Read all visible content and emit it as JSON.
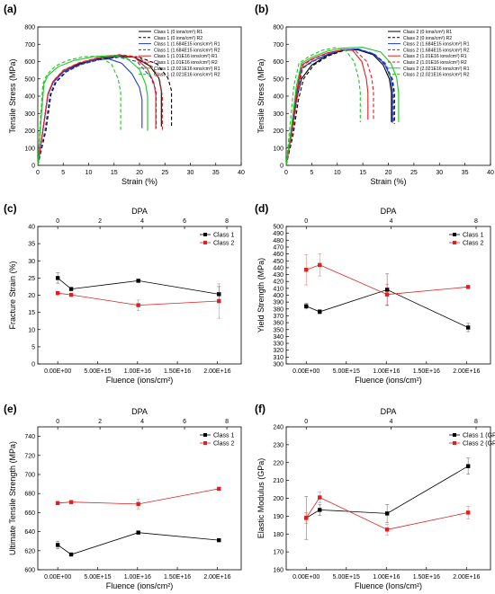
{
  "chart_data": [
    {
      "panel": "(a)",
      "type": "line",
      "xlabel": "Strain (%)",
      "ylabel": "Tensile Stress (MPa)",
      "xlim": [
        0,
        40
      ],
      "ylim": [
        0,
        800
      ],
      "xticks": [
        0,
        5,
        10,
        15,
        20,
        25,
        30,
        35,
        40
      ],
      "yticks": [
        0,
        100,
        200,
        300,
        400,
        500,
        600,
        700,
        800
      ],
      "legend": "top-right",
      "series": [
        {
          "name": "Class 1 (0 ions/cm²) R1",
          "color": "#000000",
          "dash": "solid",
          "x": [
            0,
            1,
            2,
            3,
            5,
            8,
            12,
            16,
            19,
            22,
            23.8,
            24.3,
            24.3
          ],
          "y": [
            0,
            200,
            410,
            480,
            540,
            585,
            615,
            630,
            625,
            575,
            505,
            430,
            225
          ]
        },
        {
          "name": "Class 1 (0 ions/cm²) R2",
          "color": "#000000",
          "dash": "dash",
          "x": [
            0,
            1.6,
            2.6,
            3.6,
            5.6,
            8.6,
            12.6,
            16.6,
            20,
            23.5,
            25.6,
            26.3,
            26.3
          ],
          "y": [
            0,
            200,
            410,
            480,
            540,
            585,
            615,
            630,
            625,
            585,
            505,
            430,
            225
          ]
        },
        {
          "name": "Class 1 (1.684E15 ions/cm²) R1",
          "color": "#1f3bd6",
          "dash": "solid",
          "x": [
            0,
            1,
            2,
            3,
            5,
            8,
            11,
            14,
            16.5,
            18.5,
            20,
            20.5,
            20.5
          ],
          "y": [
            0,
            200,
            410,
            480,
            540,
            580,
            608,
            615,
            590,
            530,
            450,
            380,
            215
          ]
        },
        {
          "name": "Class 1 (1.684E15 ions/cm²) R2",
          "color": "#1f3bd6",
          "dash": "dash",
          "x": [
            0,
            1.4,
            2.4,
            3.4,
            5.4,
            8.4,
            12,
            16,
            19.5,
            22.2,
            23.3,
            23.3
          ],
          "y": [
            0,
            200,
            410,
            480,
            540,
            582,
            610,
            625,
            600,
            510,
            430,
            215
          ]
        },
        {
          "name": "Class 1 (1.01E16 ions/cm²) R1",
          "color": "#e02020",
          "dash": "solid",
          "x": [
            0,
            1,
            2,
            3,
            5,
            8,
            12,
            16,
            19,
            21.5,
            22.8,
            23.2,
            23.2
          ],
          "y": [
            0,
            200,
            415,
            485,
            548,
            590,
            622,
            638,
            625,
            560,
            480,
            410,
            210
          ]
        },
        {
          "name": "Class 1 (1.01E16 ions/cm²) R2",
          "color": "#e02020",
          "dash": "dash",
          "x": [
            0,
            1,
            2,
            3,
            5,
            8,
            12,
            16,
            19.5,
            22.5,
            24,
            24.5,
            24.5
          ],
          "y": [
            0,
            200,
            415,
            487,
            550,
            592,
            624,
            640,
            628,
            570,
            490,
            400,
            205
          ]
        },
        {
          "name": "Class 1 (2.021E16 ions/cm²) R1",
          "color": "#19c820",
          "dash": "solid",
          "x": [
            0,
            0.6,
            1.2,
            2,
            4,
            7,
            11,
            14.5,
            17.5,
            20,
            21.2,
            21.6,
            21.6
          ],
          "y": [
            0,
            250,
            470,
            520,
            570,
            605,
            628,
            635,
            620,
            555,
            470,
            400,
            200
          ]
        },
        {
          "name": "Class 1 (2.021E16 ions/cm²) R2",
          "color": "#19c820",
          "dash": "dash",
          "x": [
            0,
            0.5,
            1,
            1.8,
            3.5,
            6,
            9,
            12,
            14.5,
            15.8,
            16.3,
            16.3
          ],
          "y": [
            0,
            250,
            470,
            525,
            575,
            608,
            628,
            630,
            585,
            500,
            420,
            205
          ]
        }
      ]
    },
    {
      "panel": "(b)",
      "type": "line",
      "xlabel": "Strain (%)",
      "ylabel": "Tensile Stress (MPa)",
      "xlim": [
        0,
        40
      ],
      "ylim": [
        0,
        800
      ],
      "xticks": [
        0,
        5,
        10,
        15,
        20,
        25,
        30,
        35,
        40
      ],
      "yticks": [
        0,
        100,
        200,
        300,
        400,
        500,
        600,
        700,
        800
      ],
      "legend": "top-right",
      "series": [
        {
          "name": "Class 2 (0 ions/cm²) R1",
          "color": "#000000",
          "dash": "solid",
          "x": [
            0,
            1,
            2,
            3,
            5,
            8,
            11,
            14,
            17,
            19,
            20.2,
            20.6,
            20.6
          ],
          "y": [
            0,
            180,
            380,
            500,
            580,
            635,
            665,
            668,
            640,
            580,
            500,
            420,
            250
          ]
        },
        {
          "name": "Class 2 (0 ions/cm²) R2",
          "color": "#000000",
          "dash": "dash",
          "x": [
            0,
            1.4,
            2.4,
            3.4,
            5.4,
            8.4,
            11.4,
            14.4,
            17.4,
            19.4,
            20.8,
            21.2,
            21.2
          ],
          "y": [
            0,
            180,
            380,
            500,
            580,
            635,
            665,
            668,
            640,
            580,
            500,
            420,
            240
          ]
        },
        {
          "name": "Class 2 (1.684E15 ions/cm²) R1",
          "color": "#1f3bd6",
          "dash": "solid",
          "x": [
            0,
            1,
            2,
            3,
            5,
            8,
            11,
            14,
            17,
            19.2,
            20.4,
            20.8,
            20.8
          ],
          "y": [
            0,
            190,
            400,
            560,
            600,
            640,
            668,
            672,
            645,
            590,
            510,
            430,
            245
          ]
        },
        {
          "name": "Class 2 (1.684E15 ions/cm²) R2",
          "color": "#1f3bd6",
          "dash": "dash",
          "x": [
            0,
            1.2,
            2.2,
            3.2,
            5.2,
            8.2,
            11.2,
            14.2,
            17.2,
            19.4,
            20.6,
            21,
            21
          ],
          "y": [
            0,
            190,
            400,
            560,
            600,
            640,
            668,
            672,
            645,
            590,
            510,
            430,
            245
          ]
        },
        {
          "name": "Class 2 (1.01E16 ions/cm²) R1",
          "color": "#e02020",
          "dash": "solid",
          "x": [
            0,
            1,
            2,
            3,
            5,
            8,
            11,
            13,
            14.8,
            15.7,
            16,
            16
          ],
          "y": [
            0,
            200,
            420,
            580,
            615,
            650,
            668,
            665,
            600,
            500,
            420,
            265
          ]
        },
        {
          "name": "Class 2 (1.01E16 ions/cm²) R2",
          "color": "#e02020",
          "dash": "dash",
          "x": [
            0,
            1.3,
            2.3,
            3.3,
            5.3,
            8.3,
            11.3,
            13.5,
            15.8,
            16.8,
            17.1,
            17.1
          ],
          "y": [
            0,
            200,
            420,
            580,
            615,
            650,
            668,
            665,
            600,
            500,
            420,
            265
          ]
        },
        {
          "name": "Class 2 (2.021E16 ions/cm²) R1",
          "color": "#19c820",
          "dash": "solid",
          "x": [
            0,
            1,
            2,
            3,
            5,
            8,
            11,
            15,
            18.5,
            20.5,
            21.6,
            22,
            22
          ],
          "y": [
            0,
            220,
            460,
            590,
            625,
            660,
            678,
            682,
            655,
            590,
            510,
            420,
            250
          ]
        },
        {
          "name": "Class 2 (2.021E16 ions/cm²) R2",
          "color": "#19c820",
          "dash": "dash",
          "x": [
            0,
            0.7,
            1.5,
            2.5,
            4.5,
            7,
            9.5,
            11.5,
            13.3,
            14.2,
            14.5,
            14.5
          ],
          "y": [
            0,
            220,
            460,
            590,
            630,
            665,
            680,
            670,
            600,
            500,
            420,
            250
          ]
        }
      ]
    },
    {
      "panel": "(c)",
      "type": "line",
      "xlabel": "Fluence (ions/cm²)",
      "x2label": "DPA",
      "ylabel": "Fracture Strain (%)",
      "xlim": [
        -2500000000000000.0,
        2.3e+16
      ],
      "ylim": [
        0,
        40
      ],
      "xticks": [
        0,
        5000000000000000.0,
        1e+16,
        1.5e+16,
        2e+16
      ],
      "xtick_labels": [
        "0.00E+00",
        "5.00E+15",
        "1.00E+16",
        "1.50E+16",
        "2.00E+16"
      ],
      "x2ticks": [
        0,
        2,
        4,
        6,
        8
      ],
      "yticks": [
        0,
        5,
        10,
        15,
        20,
        25,
        30,
        35,
        40
      ],
      "legend": "top-right",
      "series": [
        {
          "name": "Class 1",
          "color": "#000000",
          "marker": "square",
          "x": [
            0,
            1684000000000000.0,
            1.01e+16,
            2.021e+16
          ],
          "y": [
            25,
            21.8,
            24.2,
            20.3
          ],
          "err": [
            1.5,
            0.4,
            0.2,
            2.2
          ]
        },
        {
          "name": "Class 2",
          "color": "#e02020",
          "marker": "square",
          "x": [
            0,
            1684000000000000.0,
            1.01e+16,
            2.021e+16
          ],
          "y": [
            20.6,
            20.1,
            17.1,
            18.3
          ],
          "err": [
            0.5,
            0.4,
            1.5,
            5
          ]
        }
      ]
    },
    {
      "panel": "(d)",
      "type": "line",
      "xlabel": "Fluence (ions/cm²)",
      "x2label": "DPA",
      "ylabel": "Yield Strength (MPa)",
      "xlim": [
        -2500000000000000.0,
        2.3e+16
      ],
      "ylim": [
        300,
        500
      ],
      "xticks": [
        0,
        5000000000000000.0,
        1e+16,
        1.5e+16,
        2e+16
      ],
      "xtick_labels": [
        "0.00E+00",
        "5.00E+15",
        "1.00E+16",
        "1.50E+16",
        "2.00E+16"
      ],
      "x2ticks": [
        0,
        4,
        8
      ],
      "yticks": [
        300,
        310,
        320,
        330,
        340,
        350,
        360,
        370,
        380,
        390,
        400,
        410,
        420,
        430,
        440,
        450,
        460,
        470,
        480,
        490,
        500
      ],
      "legend": "top-right",
      "series": [
        {
          "name": "Class 1",
          "color": "#000000",
          "marker": "square",
          "x": [
            0,
            1684000000000000.0,
            1.01e+16,
            2.021e+16
          ],
          "y": [
            384,
            376,
            408,
            353
          ],
          "err": [
            4,
            3,
            23,
            6
          ]
        },
        {
          "name": "Class 2",
          "color": "#e02020",
          "marker": "square",
          "x": [
            0,
            1684000000000000.0,
            1.01e+16,
            2.021e+16
          ],
          "y": [
            437,
            444,
            401,
            412
          ],
          "err": [
            22,
            16,
            15,
            2
          ]
        }
      ]
    },
    {
      "panel": "(e)",
      "type": "line",
      "xlabel": "Fluence (ions/cm²)",
      "x2label": "DPA",
      "ylabel": "Ultimate Tensile Strength (MPa)",
      "xlim": [
        -2500000000000000.0,
        2.3e+16
      ],
      "ylim": [
        600,
        750
      ],
      "xticks": [
        0,
        5000000000000000.0,
        1e+16,
        1.5e+16,
        2e+16
      ],
      "xtick_labels": [
        "0.00E+00",
        "5.00E+15",
        "1.00E+16",
        "1.50E+16",
        "2.00E+16"
      ],
      "x2ticks": [
        0,
        2,
        4,
        6,
        8
      ],
      "yticks": [
        600,
        620,
        640,
        660,
        680,
        700,
        720,
        740
      ],
      "legend": "top-right",
      "series": [
        {
          "name": "Class 1",
          "color": "#000000",
          "marker": "square",
          "x": [
            0,
            1684000000000000.0,
            1.01e+16,
            2.021e+16
          ],
          "y": [
            626,
            616,
            639,
            631
          ],
          "err": [
            4,
            1,
            1,
            1
          ]
        },
        {
          "name": "Class 2",
          "color": "#e02020",
          "marker": "square",
          "x": [
            0,
            1684000000000000.0,
            1.01e+16,
            2.021e+16
          ],
          "y": [
            670,
            671,
            669,
            685
          ],
          "err": [
            1,
            1,
            5,
            1
          ]
        }
      ]
    },
    {
      "panel": "(f)",
      "type": "line",
      "xlabel": "Fluence (Ions/cm²)",
      "x2label": "DPA",
      "ylabel": "Elastic Modulus (GPa)",
      "xlim": [
        -2500000000000000.0,
        2.3e+16
      ],
      "ylim": [
        160,
        240
      ],
      "xticks": [
        0,
        5000000000000000.0,
        1e+16,
        1.5e+16,
        2e+16
      ],
      "xtick_labels": [
        "0.00E+00",
        "5.00E+15",
        "1.00E+16",
        "1.50E+16",
        "2.00E+16"
      ],
      "x2ticks": [
        0,
        4,
        8
      ],
      "yticks": [
        160,
        170,
        180,
        190,
        200,
        210,
        220,
        230,
        240
      ],
      "legend": "top-right",
      "series": [
        {
          "name": "Class 1 (GPa)",
          "color": "#000000",
          "marker": "square",
          "x": [
            0,
            1684000000000000.0,
            1.01e+16,
            2.021e+16
          ],
          "y": [
            189,
            193.5,
            191.5,
            218
          ],
          "err": [
            12,
            3,
            5,
            4.5
          ]
        },
        {
          "name": "Class 2 (GPa)",
          "color": "#e02020",
          "marker": "square",
          "x": [
            0,
            1684000000000000.0,
            1.01e+16,
            2.021e+16
          ],
          "y": [
            189,
            200.5,
            182.5,
            192
          ],
          "err": [
            3,
            3,
            3,
            3.5
          ]
        }
      ]
    }
  ]
}
